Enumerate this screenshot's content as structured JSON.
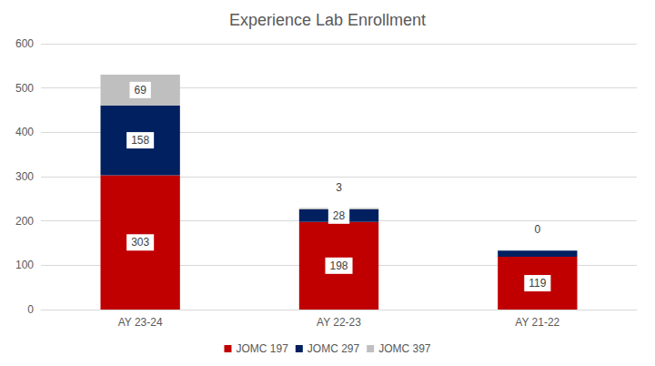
{
  "chart_data": {
    "type": "bar",
    "title": "Experience Lab Enrollment",
    "categories": [
      "AY 23-24",
      "AY 22-23",
      "AY 21-22"
    ],
    "series": [
      {
        "name": "JOMC 197",
        "color": "#c00000",
        "values": [
          303,
          198,
          119
        ]
      },
      {
        "name": "JOMC 297",
        "color": "#002060",
        "values": [
          158,
          28,
          14
        ],
        "value_labels": [
          "158",
          "28",
          null
        ]
      },
      {
        "name": "JOMC 397",
        "color": "#bfbfbf",
        "values": [
          69,
          3,
          0
        ]
      }
    ],
    "ylim": [
      0,
      600
    ],
    "yticks": [
      0,
      100,
      200,
      300,
      400,
      500,
      600
    ],
    "stacked": true,
    "data_labels": true,
    "grid": true,
    "legend": "bottom"
  }
}
